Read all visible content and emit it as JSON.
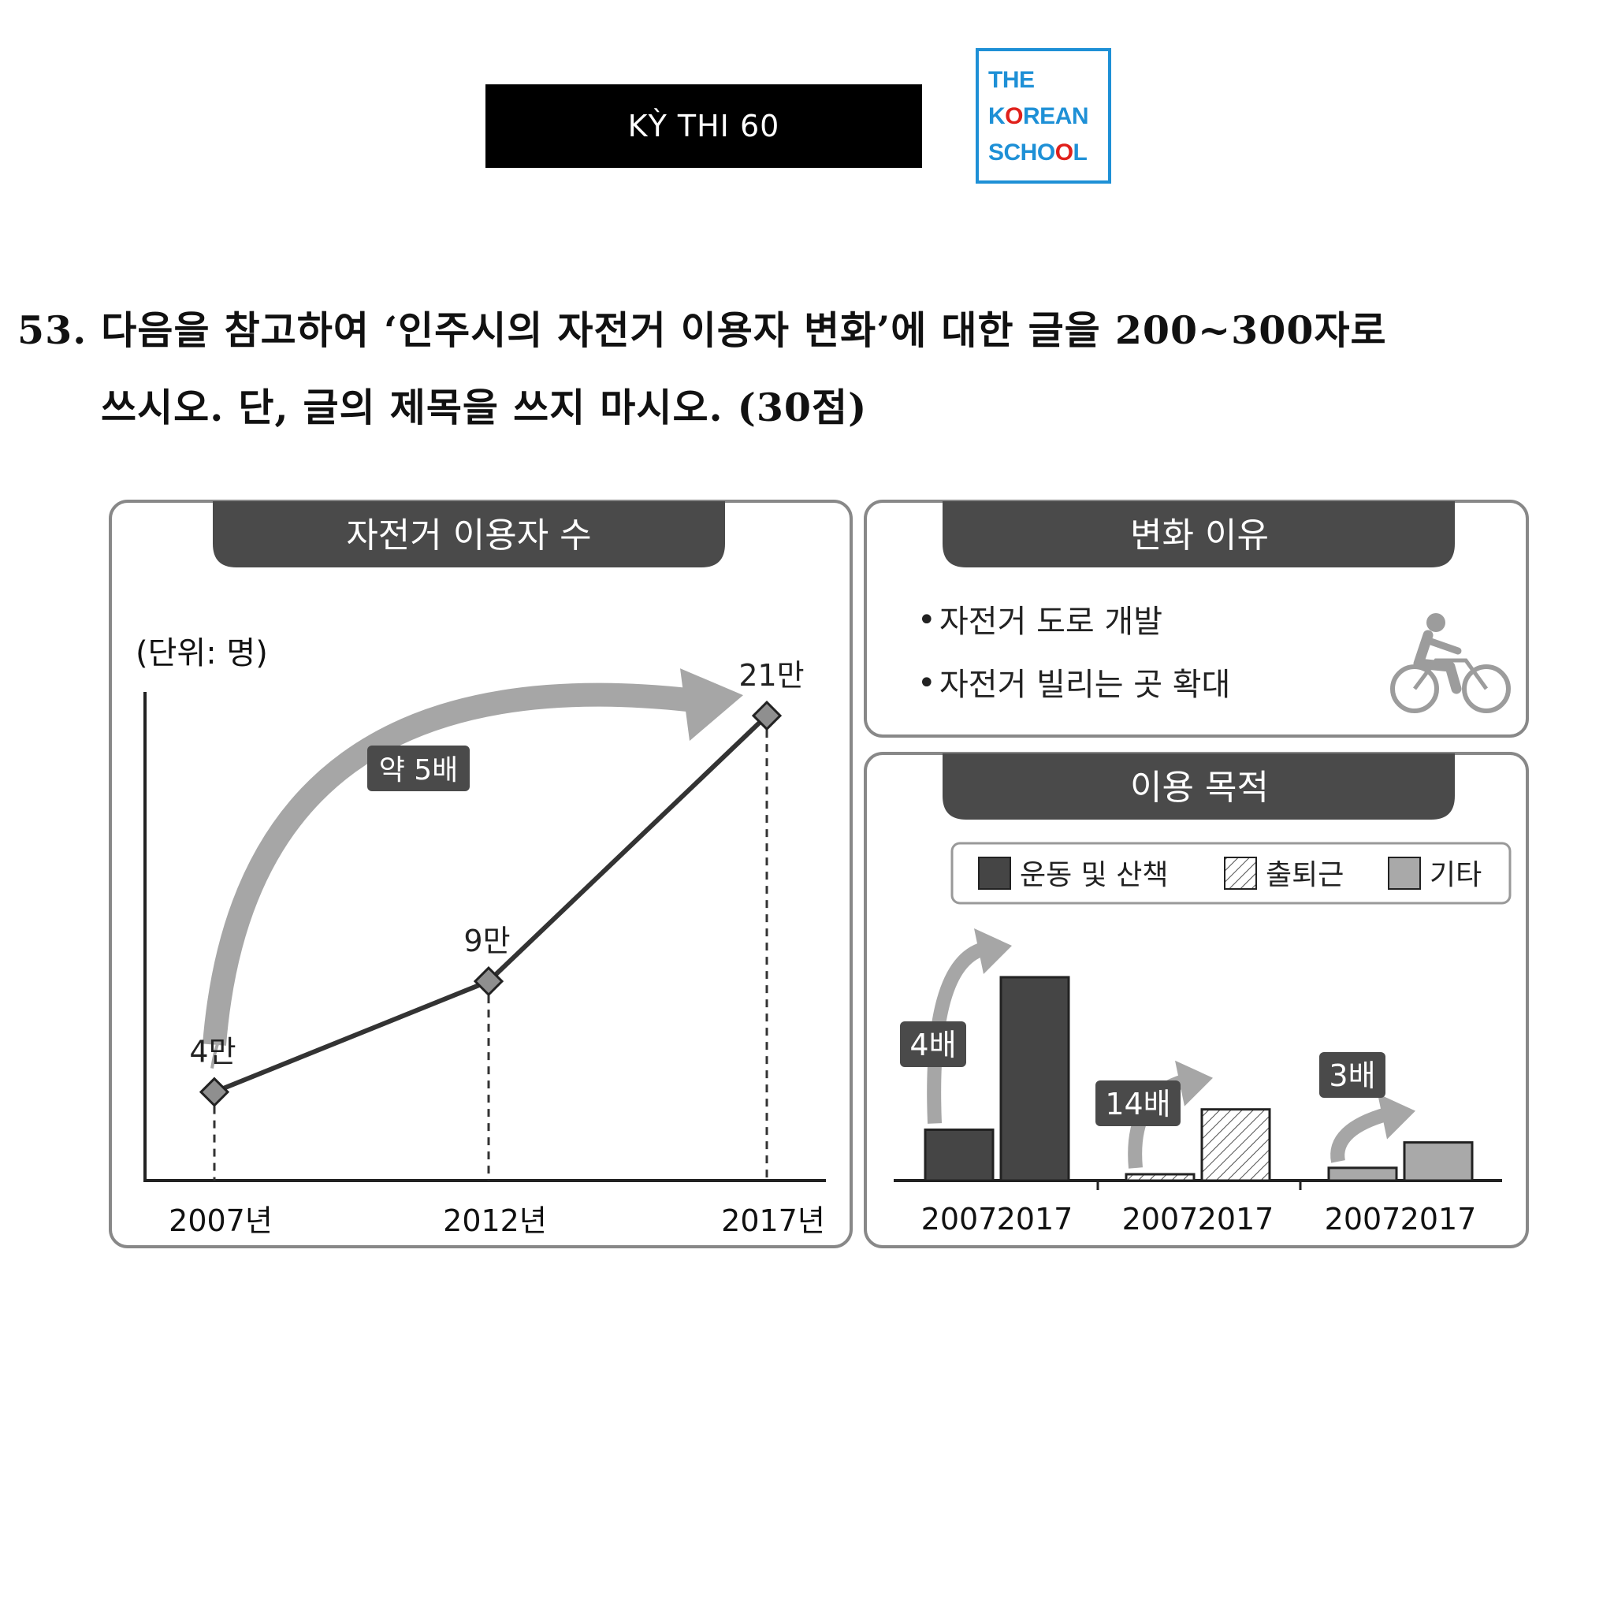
{
  "header": {
    "banner_text": "KỲ THI 60",
    "logo_lines": [
      "THE",
      "K",
      "O",
      "REAN",
      "SCHO",
      "O",
      "L"
    ]
  },
  "question": {
    "line1": "53. 다음을 참고하여 ‘인주시의 자전거 이용자 변화’에 대한 글을 200~300자로",
    "line2": "쓰시오. 단, 글의 제목을 쓰지 마시오. (30점)"
  },
  "colors": {
    "panel_header": "#4a4a4a",
    "exercise": "#454545",
    "commute": "#ffffff",
    "other": "#a9a9a9",
    "arrow": "#a6a6a6",
    "accent_blue": "#1e90d6",
    "accent_red": "#e0201b"
  },
  "reasons_panel": {
    "title": "변화 이유",
    "items": [
      "자전거 도로 개발",
      "자전거 빌리는 곳 확대"
    ],
    "icon": "bicycle-rider-icon"
  },
  "chart_data": [
    {
      "type": "line",
      "title": "자전거 이용자 수",
      "unit_label": "(단위: 명)",
      "categories": [
        "2007년",
        "2012년",
        "2017년"
      ],
      "values": [
        40000,
        90000,
        210000
      ],
      "data_labels": [
        "4만",
        "9만",
        "21만"
      ],
      "annotation": "약 5배",
      "ylim": [
        0,
        220000
      ],
      "grid": false,
      "marker": "diamond"
    },
    {
      "type": "bar",
      "title": "이용 목적",
      "legend": [
        "운동 및 산책",
        "출퇴근",
        "기타"
      ],
      "legend_position": "top",
      "groups": [
        {
          "name": "운동 및 산책",
          "categories": [
            "2007",
            "2017"
          ],
          "values": [
            1,
            4
          ],
          "annotation": "4배",
          "fill": "solid-dark"
        },
        {
          "name": "출퇴근",
          "categories": [
            "2007",
            "2017"
          ],
          "values": [
            0.1,
            1.4
          ],
          "annotation": "14배",
          "fill": "hatched"
        },
        {
          "name": "기타",
          "categories": [
            "2007",
            "2017"
          ],
          "values": [
            0.25,
            0.75
          ],
          "annotation": "3배",
          "fill": "solid-light"
        }
      ]
    }
  ]
}
